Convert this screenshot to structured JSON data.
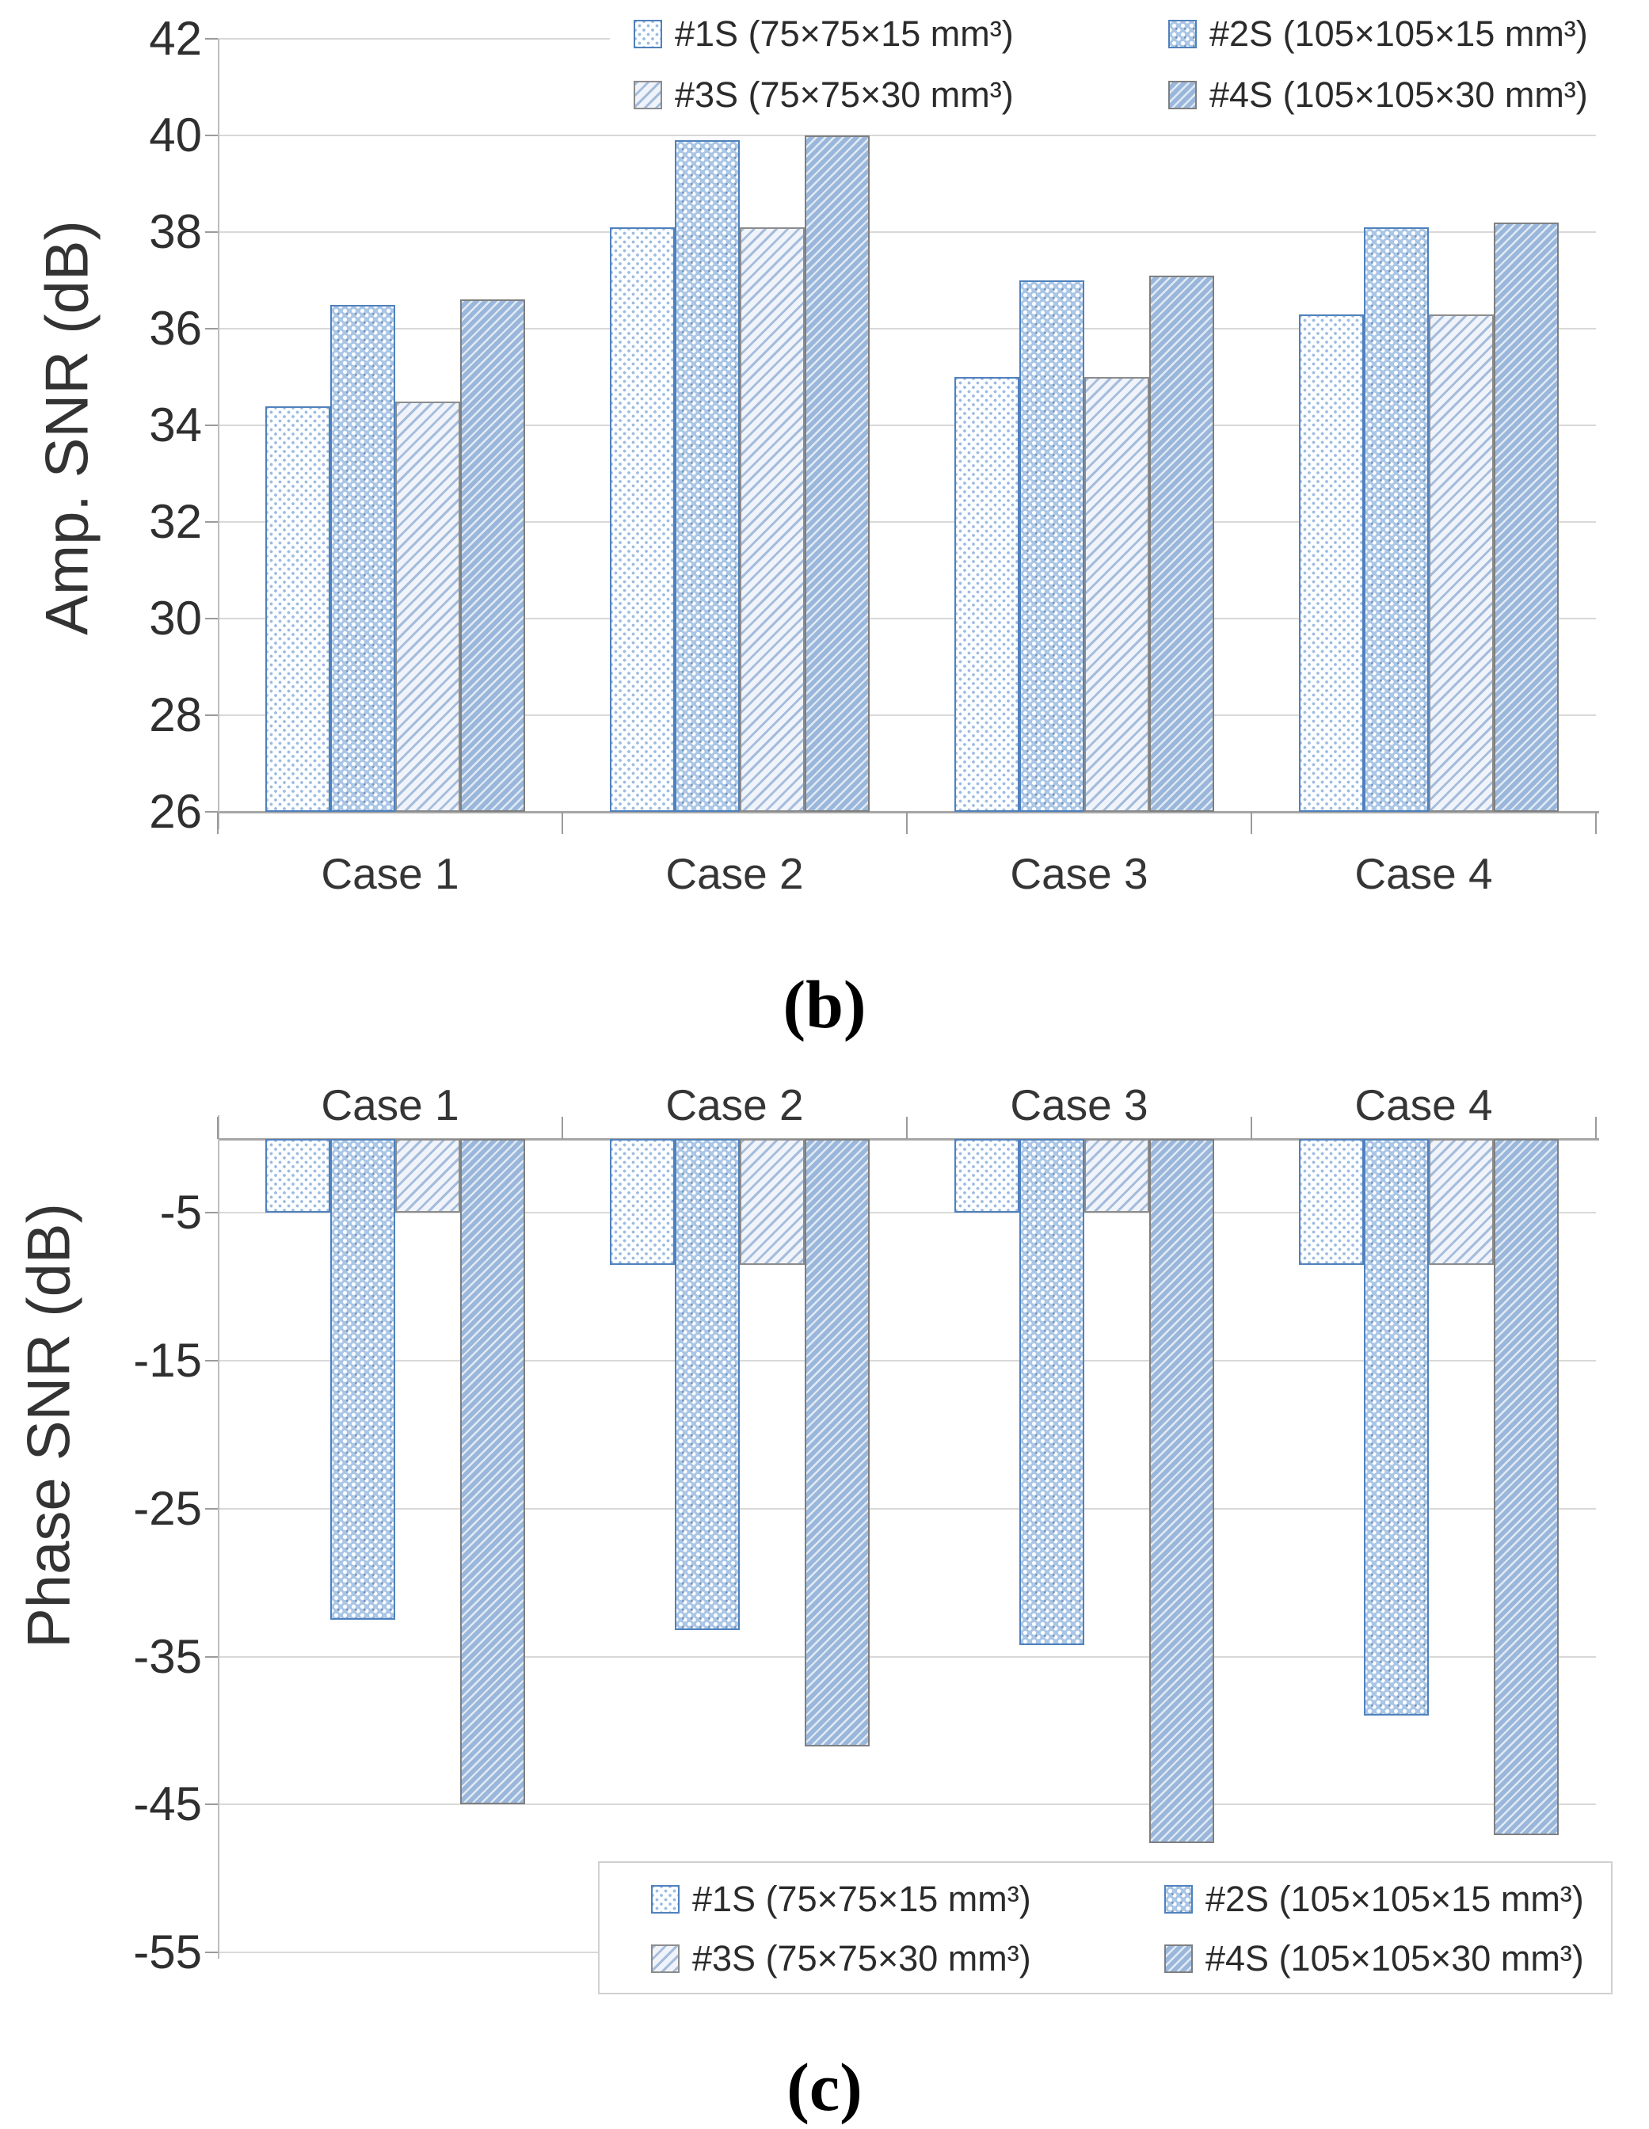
{
  "panel_labels": {
    "b": "(b)",
    "c": "(c)"
  },
  "colors": {
    "accent_blue": "#4f81bd",
    "bar_fill_light": "#fdfeff",
    "bar_fill_dot_dense": "#aac6e6",
    "bar_fill_hatch_light": "#f0f4fa",
    "bar_fill_hatch_dense": "#9ab7db",
    "hatch_border_gray": "#7f7f7f",
    "gridline": "#d8d8d8",
    "axis": "#a6a6a6"
  },
  "chart_data": [
    {
      "id": "amp-snr",
      "type": "bar",
      "title": "",
      "xlabel": "",
      "ylabel": "Amp. SNR (dB)",
      "panel_label": "(b)",
      "categories": [
        "Case 1",
        "Case 2",
        "Case 3",
        "Case 4"
      ],
      "series": [
        {
          "name": "#1S (75×75×15 mm³)",
          "pattern": "dot-light-icon",
          "values": [
            34.4,
            38.1,
            35.0,
            36.3
          ]
        },
        {
          "name": "#2S (105×105×15 mm³)",
          "pattern": "dot-dense-icon",
          "values": [
            36.5,
            39.9,
            37.0,
            38.1
          ]
        },
        {
          "name": "#3S (75×75×30 mm³)",
          "pattern": "hatch-light-icon",
          "values": [
            34.5,
            38.1,
            35.0,
            36.3
          ]
        },
        {
          "name": "#4S (105×105×30 mm³)",
          "pattern": "hatch-dense-icon",
          "values": [
            36.6,
            40.0,
            37.1,
            38.2
          ]
        }
      ],
      "ylim": [
        26,
        42
      ],
      "yticks": [
        42,
        40,
        38,
        36,
        34,
        32,
        30,
        28,
        26
      ],
      "grid": true,
      "legend_position": "top-right",
      "category_labels_position": "below"
    },
    {
      "id": "phase-snr",
      "type": "bar",
      "title": "",
      "xlabel": "",
      "ylabel": "Phase SNR (dB)",
      "panel_label": "(c)",
      "categories": [
        "Case 1",
        "Case 2",
        "Case 3",
        "Case 4"
      ],
      "series": [
        {
          "name": "#1S (75×75×15 mm³)",
          "pattern": "dot-light-icon",
          "values": [
            -5.0,
            -8.5,
            -5.0,
            -8.5
          ]
        },
        {
          "name": "#2S (105×105×15 mm³)",
          "pattern": "dot-dense-icon",
          "values": [
            -32.5,
            -33.2,
            -34.2,
            -39.0
          ]
        },
        {
          "name": "#3S (75×75×30 mm³)",
          "pattern": "hatch-light-icon",
          "values": [
            -5.0,
            -8.5,
            -5.0,
            -8.5
          ]
        },
        {
          "name": "#4S (105×105×30 mm³)",
          "pattern": "hatch-dense-icon",
          "values": [
            -45.0,
            -41.1,
            -47.6,
            -47.1
          ]
        }
      ],
      "ylim": [
        -55,
        0
      ],
      "yticks": [
        -5,
        -15,
        -25,
        -35,
        -45,
        -55
      ],
      "grid": true,
      "legend_position": "bottom-inside-box",
      "category_labels_position": "above"
    }
  ]
}
